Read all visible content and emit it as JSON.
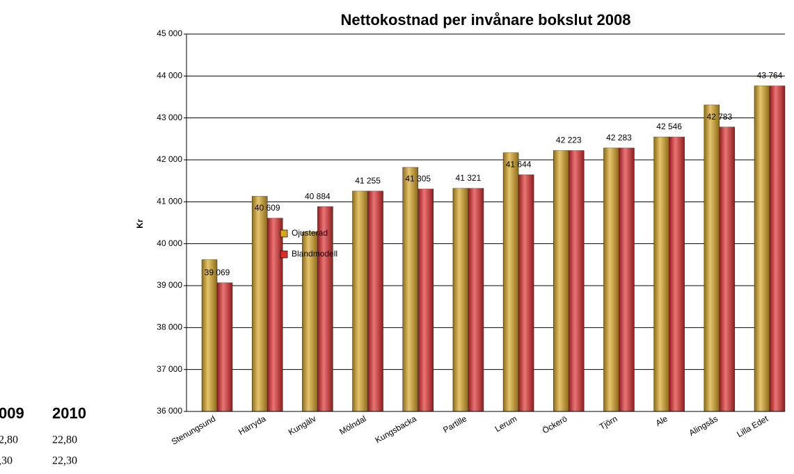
{
  "chart_data": {
    "type": "bar",
    "title": "Nettokostnad per invånare bokslut 2008",
    "ylabel": "Kr",
    "categories": [
      "Stenungsund",
      "Härryda",
      "Kungälv",
      "Mölndal",
      "Kungsbacka",
      "Partille",
      "Lerum",
      "Öckerö",
      "Tjörn",
      "Ale",
      "Alingsås",
      "Lilla Edet"
    ],
    "series": [
      {
        "name": "Ojusterad",
        "color": "#d9a521",
        "values": [
          39620,
          41130,
          40280,
          41255,
          41820,
          41321,
          42170,
          42223,
          42283,
          42546,
          43310,
          43764
        ]
      },
      {
        "name": "Blandmodell",
        "color": "#e02a2a",
        "values": [
          39069,
          40609,
          40884,
          41255,
          41305,
          41321,
          41644,
          42223,
          42283,
          42546,
          42783,
          43764
        ],
        "value_labels": [
          "39 069",
          "40 609",
          "40 884",
          "41 255",
          "41 305",
          "41 321",
          "41 644",
          "42 223",
          "42 283",
          "42 546",
          "42 783",
          "43 764"
        ]
      }
    ],
    "ylim": [
      36000,
      45000
    ],
    "yticks": [
      {
        "value": 36000,
        "label": "36 000"
      },
      {
        "value": 37000,
        "label": "37 000"
      },
      {
        "value": 38000,
        "label": "38 000"
      },
      {
        "value": 39000,
        "label": "39 000"
      },
      {
        "value": 40000,
        "label": "40 000"
      },
      {
        "value": 41000,
        "label": "41 000"
      },
      {
        "value": 42000,
        "label": "42 000"
      },
      {
        "value": 43000,
        "label": "43 000"
      },
      {
        "value": 44000,
        "label": "44 000"
      },
      {
        "value": 45000,
        "label": "45 000"
      }
    ],
    "grid": true,
    "legend": "left"
  },
  "fragment": {
    "headers": [
      "009",
      "2010"
    ],
    "rows": [
      [
        "2,80",
        "22,80"
      ],
      [
        ",30",
        "22,30"
      ]
    ]
  }
}
